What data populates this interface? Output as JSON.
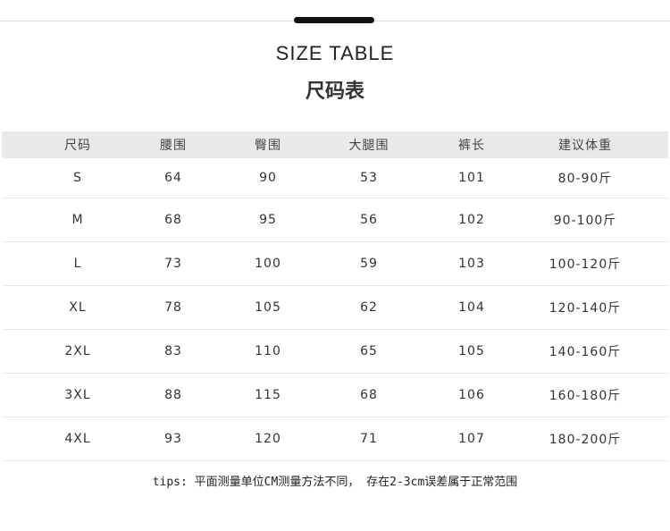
{
  "title_en": "SIZE TABLE",
  "title_cn": "尺码表",
  "table": {
    "headers": [
      "尺码",
      "腰围",
      "臀围",
      "大腿围",
      "裤长",
      "建议体重"
    ],
    "rows": [
      [
        "S",
        "64",
        "90",
        "53",
        "101",
        "80-90斤"
      ],
      [
        "M",
        "68",
        "95",
        "56",
        "102",
        "90-100斤"
      ],
      [
        "L",
        "73",
        "100",
        "59",
        "103",
        "100-120斤"
      ],
      [
        "XL",
        "78",
        "105",
        "62",
        "104",
        "120-140斤"
      ],
      [
        "2XL",
        "83",
        "110",
        "65",
        "105",
        "140-160斤"
      ],
      [
        "3XL",
        "88",
        "115",
        "68",
        "106",
        "160-180斤"
      ],
      [
        "4XL",
        "93",
        "120",
        "71",
        "107",
        "180-200斤"
      ]
    ]
  },
  "tips": "tips: 平面测量单位CM测量方法不同， 存在2-3cm误差属于正常范围"
}
